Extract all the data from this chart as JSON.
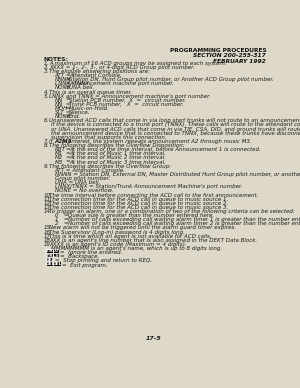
{
  "header_right": [
    "PROGRAMMING PROCEDURES",
    "SECTION 200-255-317",
    "FEBRUARY 1992"
  ],
  "background": "#ddd8c8",
  "text_color": "#1a1a1a",
  "header_color": "#111111",
  "body_lines": [
    [
      "bold",
      "NOTES:"
    ],
    [
      "num",
      "1.",
      "A maximum of 16 ACD groups may be assigned to each system."
    ],
    [
      "num",
      "2.",
      "XXXX = 1-, 2-, 3-, or 4-digit ACD Group pilot number.",
      "italic_part",
      "XXXX"
    ],
    [
      "num",
      "3.",
      "The eligible answering positions are:"
    ],
    [
      "sub",
      "ATT",
      "=",
      "Attendant Console."
    ],
    [
      "sub",
      "NNNN",
      "=",
      "Station DN, Hunt Group pilot number, or Another ACD Group pilot number."
    ],
    [
      "sub",
      "LNNX, TNNX",
      "=",
      "Announcement machine port number."
    ],
    [
      "sub",
      "NONE",
      "=",
      "UNA bell."
    ],
    [
      "num",
      "4.",
      "This is an overall queue timer."
    ],
    [
      "num",
      "5.",
      "LNNX and TNNX = Announcement machine's port number."
    ],
    [
      "sub",
      "NN",
      "=",
      "Station PCB number,  X  =  circuit number."
    ],
    [
      "sub",
      "NN",
      "=",
      "Trunk PCB number,   X  =  circuit number."
    ],
    [
      "sub",
      "MOH",
      "=",
      "Music-on-Hold."
    ],
    [
      "sub",
      "SLT",
      "=",
      "Silence."
    ],
    [
      "sub",
      "NONE",
      "=",
      "End."
    ],
    [
      "num",
      "6.",
      "Unanswered ACD calls that come in via loop start trunks will not route to an announcement device,"
    ],
    [
      "cont",
      "if the device is connected to a trunk port (TNNX). These calls will route to the attendant console"
    ],
    [
      "cont",
      "or UNA. Unanswered ACD calls that come in via TIE, CSA, DID, and ground trunks will route to"
    ],
    [
      "cont",
      "the announcement device that is connected to TNNX, because these trunks have disconnect"
    ],
    [
      "cont",
      "supervision that supports this connection."
    ],
    [
      "num",
      "7.",
      "If A2M3 is entered, the system repeats announcement A2 through music M3.",
      "bold_A2M3"
    ],
    [
      "num",
      "8.",
      "The following describes the Overflow Disposition:"
    ],
    [
      "sub",
      "RBT",
      "=",
      "At the end of the time interval, before Announcement 1 is connected."
    ],
    [
      "sub",
      "M1",
      "=",
      "At the end of Music 1 time interval."
    ],
    [
      "sub",
      "M2",
      "=",
      "At the end of Music 2 time interval."
    ],
    [
      "sub",
      "M3",
      "=",
      "At the end of Music 3 time interval."
    ],
    [
      "num",
      "9.",
      "The following describes the Overflow Group:"
    ],
    [
      "cont2",
      "ATT = Attendant Console."
    ],
    [
      "cont2",
      "NNNN = Station DN, External DN, Master Distributed Hunt Group pilot number, or another ACD"
    ],
    [
      "cont2",
      "Group pilot number."
    ],
    [
      "cont2",
      "UNA = UNA bell."
    ],
    [
      "cont2",
      "LNNX/TNNX = Station/Trunk Announcement Machine's port number."
    ],
    [
      "cont2",
      "NONE = No overflow."
    ],
    [
      "num",
      "10.",
      "The time interval before connecting the ACD call to the first announcement."
    ],
    [
      "num",
      "11.",
      "The connection time for the ACD call in queue to music source 1."
    ],
    [
      "num",
      "12.",
      "The connection time for the ACD call in queue to music source 2."
    ],
    [
      "num",
      "13.",
      "The connection time for the ACD call in queue to music source 3."
    ],
    [
      "num",
      "14.",
      "To trigger an alarm, one or a combination of two of the following criteria can be selected:"
    ],
    [
      "sub2",
      "0",
      "=",
      "Queue size is greater than the number entered here."
    ],
    [
      "sub2",
      "1",
      "=",
      "Number of calls exceeding call waiting alarm timer 1 is greater than the number entered here."
    ],
    [
      "sub2",
      "2",
      "=",
      "Number of calls exceeding call waiting alarm timer 2 is greater than the number entered here."
    ],
    [
      "num",
      "15.",
      "New alarm will not be triggered until the alarm guard timer expires."
    ],
    [
      "num",
      "16.",
      "The Supervisor (Log-in) password is 4 digits long."
    ],
    [
      "num",
      "17.",
      "This is a time which an agent is not available for ACD calls."
    ],
    [
      "num",
      "18.",
      "XXX is an agent's line number that is also assigned in the DEKT Data Block."
    ],
    [
      "num",
      "19.",
      "XXXX is an agent's ID code (Maximum = 4 digits)."
    ],
    [
      "cont",
      "MMMMMMMM is an agent's name, which is up to 8 digits long."
    ],
    [
      "box",
      [
        "CTRL",
        "0"
      ],
      "=  Ignore line entered."
    ],
    [
      "box",
      [
        "CTRL",
        "#"
      ],
      "=  Backspace."
    ],
    [
      "box",
      [
        "DEL"
      ],
      "=  Stop printing and return to REQ."
    ],
    [
      "box",
      [
        "DEL",
        "DEL"
      ],
      "=  Exit program."
    ]
  ],
  "footer": "17-5"
}
